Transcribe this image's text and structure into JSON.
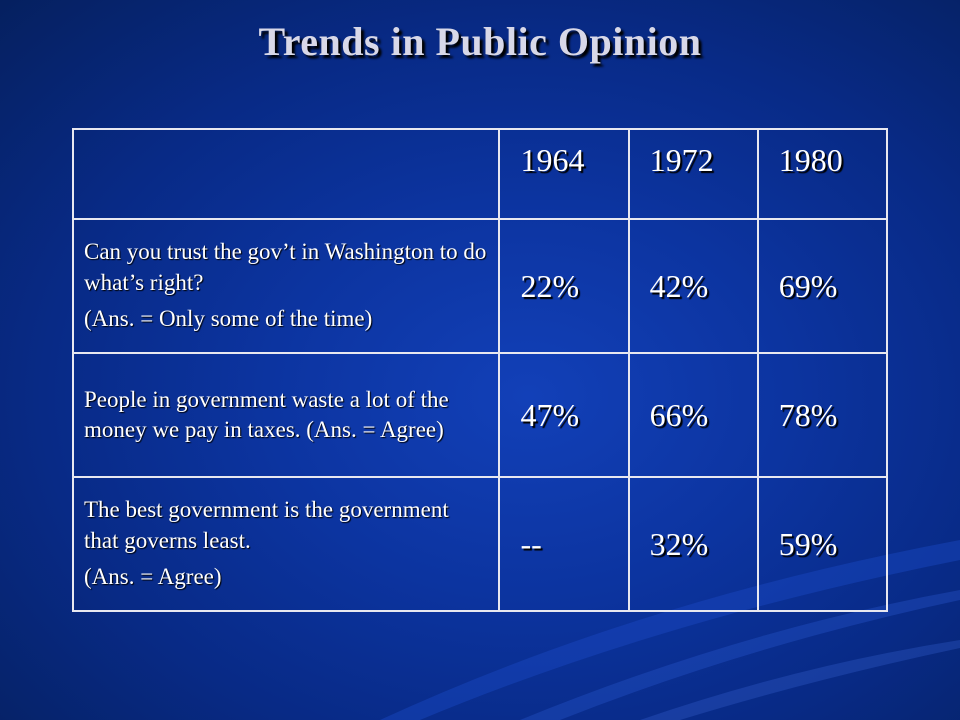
{
  "slide": {
    "title": "Trends in Public Opinion"
  },
  "table": {
    "years": [
      "1964",
      "1972",
      "1980"
    ],
    "rows": [
      {
        "question": "Can you trust the gov’t in Washington to do what’s right?",
        "answer_note": "(Ans. = Only some of the time)",
        "values": [
          "22%",
          "42%",
          "69%"
        ]
      },
      {
        "question": "People in government waste a lot of the money we pay in taxes.  (Ans. = Agree)",
        "answer_note": "",
        "values": [
          "47%",
          "66%",
          "78%"
        ]
      },
      {
        "question": "The best government is the government that governs least.",
        "answer_note": "(Ans. = Agree)",
        "values": [
          "--",
          "32%",
          "59%"
        ]
      }
    ]
  }
}
